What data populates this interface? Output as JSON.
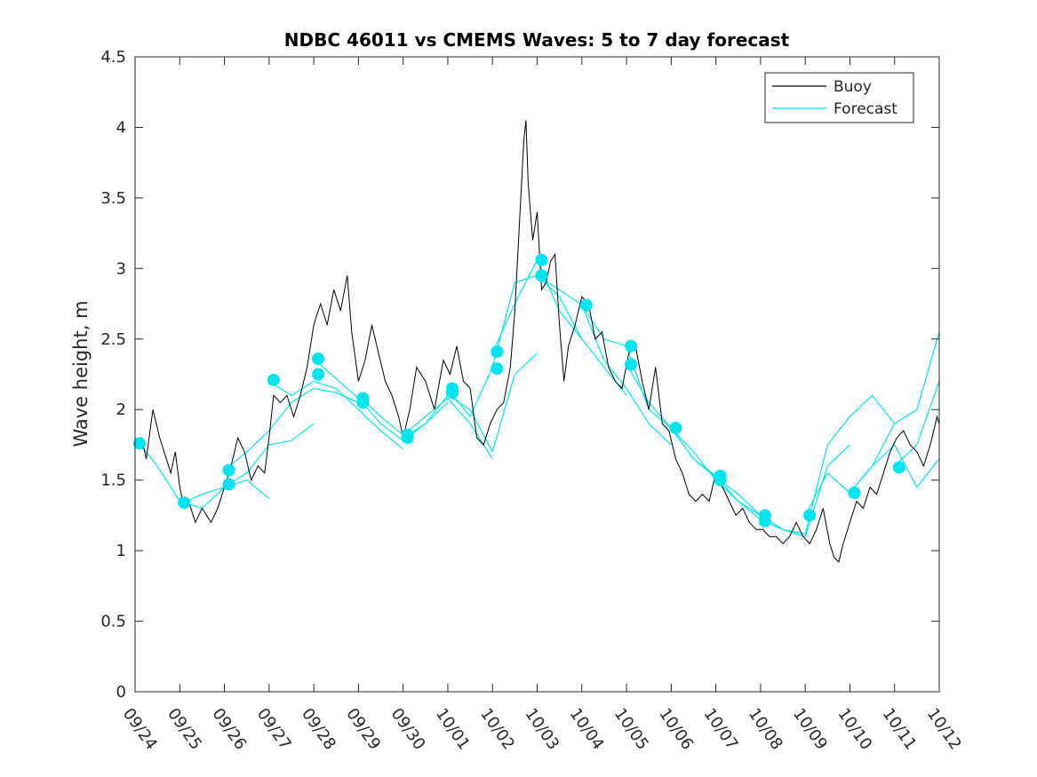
{
  "chart_data": {
    "type": "line",
    "title": "NDBC 46011 vs CMEMS Waves: 5 to 7 day forecast",
    "ylabel": "Wave height, m",
    "xlabel": "",
    "xlim": [
      0,
      18
    ],
    "ylim": [
      0,
      4.5
    ],
    "x_ticks": [
      0,
      1,
      2,
      3,
      4,
      5,
      6,
      7,
      8,
      9,
      10,
      11,
      12,
      13,
      14,
      15,
      16,
      17,
      18
    ],
    "x_tick_labels": [
      "09/24",
      "09/25",
      "09/26",
      "09/27",
      "09/28",
      "09/29",
      "09/30",
      "10/01",
      "10/02",
      "10/03",
      "10/04",
      "10/05",
      "10/06",
      "10/07",
      "10/08",
      "10/09",
      "10/10",
      "10/11",
      "10/12"
    ],
    "y_ticks": [
      0,
      0.5,
      1,
      1.5,
      2,
      2.5,
      3,
      3.5,
      4,
      4.5
    ],
    "y_tick_labels": [
      "0",
      "0.5",
      "1",
      "1.5",
      "2",
      "2.5",
      "3",
      "3.5",
      "4",
      "4.5"
    ],
    "grid": false,
    "legend": {
      "location": "top-right",
      "entries": [
        {
          "label": "Buoy",
          "color": "#000000"
        },
        {
          "label": "Forecast",
          "color": "#00e5ee"
        }
      ]
    },
    "colors": {
      "buoy": "#000000",
      "forecast": "#00e5ee"
    },
    "buoy": {
      "name": "Buoy",
      "x": [
        0,
        0.15,
        0.25,
        0.4,
        0.55,
        0.7,
        0.8,
        0.9,
        1.0,
        1.1,
        1.2,
        1.35,
        1.5,
        1.7,
        1.85,
        2.0,
        2.15,
        2.3,
        2.45,
        2.6,
        2.75,
        2.9,
        3.0,
        3.1,
        3.25,
        3.4,
        3.55,
        3.7,
        3.85,
        4.0,
        4.15,
        4.3,
        4.45,
        4.6,
        4.75,
        4.85,
        5.0,
        5.15,
        5.3,
        5.45,
        5.6,
        5.75,
        5.9,
        6.0,
        6.15,
        6.3,
        6.5,
        6.7,
        6.9,
        7.05,
        7.2,
        7.35,
        7.5,
        7.65,
        7.8,
        7.95,
        8.1,
        8.25,
        8.4,
        8.5,
        8.6,
        8.7,
        8.75,
        8.8,
        8.9,
        9.0,
        9.1,
        9.2,
        9.3,
        9.4,
        9.5,
        9.6,
        9.7,
        9.85,
        10.0,
        10.15,
        10.3,
        10.45,
        10.6,
        10.75,
        10.9,
        11.05,
        11.2,
        11.35,
        11.5,
        11.65,
        11.8,
        11.95,
        12.1,
        12.25,
        12.4,
        12.55,
        12.7,
        12.85,
        13.0,
        13.15,
        13.3,
        13.45,
        13.6,
        13.75,
        13.9,
        14.05,
        14.2,
        14.35,
        14.5,
        14.65,
        14.8,
        14.95,
        15.1,
        15.25,
        15.4,
        15.55,
        15.65,
        15.75,
        15.85,
        16.0,
        16.15,
        16.3,
        16.45,
        16.6,
        16.75,
        16.9,
        17.05,
        17.2,
        17.35,
        17.5,
        17.65,
        17.8,
        17.95,
        18.0
      ],
      "values": [
        1.75,
        1.8,
        1.65,
        2.0,
        1.8,
        1.65,
        1.55,
        1.7,
        1.45,
        1.3,
        1.35,
        1.2,
        1.3,
        1.2,
        1.3,
        1.45,
        1.6,
        1.8,
        1.7,
        1.5,
        1.6,
        1.55,
        1.8,
        2.1,
        2.05,
        2.1,
        1.95,
        2.1,
        2.3,
        2.6,
        2.75,
        2.6,
        2.85,
        2.7,
        2.95,
        2.55,
        2.2,
        2.35,
        2.6,
        2.4,
        2.2,
        2.1,
        1.95,
        1.8,
        2.0,
        2.3,
        2.2,
        2.0,
        2.35,
        2.25,
        2.45,
        2.2,
        2.15,
        1.8,
        1.75,
        1.9,
        2.0,
        2.05,
        2.3,
        2.7,
        3.3,
        3.9,
        4.05,
        3.6,
        3.2,
        3.4,
        2.85,
        2.9,
        3.05,
        3.1,
        2.6,
        2.2,
        2.45,
        2.6,
        2.8,
        2.75,
        2.5,
        2.55,
        2.3,
        2.2,
        2.15,
        2.4,
        2.45,
        2.2,
        2.0,
        2.3,
        1.9,
        1.85,
        1.65,
        1.55,
        1.4,
        1.35,
        1.4,
        1.35,
        1.55,
        1.45,
        1.35,
        1.25,
        1.3,
        1.2,
        1.15,
        1.15,
        1.1,
        1.1,
        1.05,
        1.1,
        1.2,
        1.1,
        1.05,
        1.15,
        1.3,
        1.05,
        0.95,
        0.92,
        1.05,
        1.2,
        1.35,
        1.3,
        1.45,
        1.4,
        1.55,
        1.7,
        1.8,
        1.85,
        1.75,
        1.7,
        1.6,
        1.75,
        1.95,
        1.9
      ]
    },
    "forecast_series": [
      {
        "name": "Forecast",
        "x": [
          0,
          0.5,
          1.0,
          1.5,
          2.0,
          2.5,
          3.0
        ],
        "values": [
          1.8,
          1.6,
          1.35,
          1.3,
          1.45,
          1.5,
          1.37
        ]
      },
      {
        "name": "Forecast",
        "x": [
          1.0,
          1.5,
          2.0,
          2.5,
          3.0,
          3.5,
          4.0
        ],
        "values": [
          1.33,
          1.4,
          1.45,
          1.55,
          1.75,
          1.78,
          1.9
        ]
      },
      {
        "name": "Forecast",
        "x": [
          2.0,
          2.5,
          3.0,
          3.5,
          4.0,
          4.5,
          5.0
        ],
        "values": [
          1.57,
          1.7,
          1.85,
          2.05,
          2.15,
          2.12,
          2.05
        ]
      },
      {
        "name": "Forecast",
        "x": [
          3.0,
          3.5,
          4.0,
          4.5,
          5.0,
          5.5,
          6.0
        ],
        "values": [
          2.2,
          2.1,
          2.2,
          2.15,
          2.0,
          1.85,
          1.72
        ]
      },
      {
        "name": "Forecast",
        "x": [
          4.0,
          4.5,
          5.0,
          5.5,
          6.0,
          6.5,
          7.0
        ],
        "values": [
          2.36,
          2.22,
          2.08,
          1.9,
          1.78,
          1.9,
          2.05
        ]
      },
      {
        "name": "Forecast",
        "x": [
          5.0,
          5.5,
          6.0,
          6.5,
          7.0,
          7.5,
          8.0
        ],
        "values": [
          2.1,
          1.95,
          1.82,
          1.95,
          2.08,
          1.9,
          1.65
        ]
      },
      {
        "name": "Forecast",
        "x": [
          6.0,
          6.5,
          7.0,
          7.5,
          8.0,
          8.5,
          9.0
        ],
        "values": [
          1.8,
          1.9,
          2.1,
          2.0,
          1.7,
          2.25,
          2.4
        ]
      },
      {
        "name": "Forecast",
        "x": [
          7.0,
          7.5,
          8.0,
          8.5,
          9.0,
          9.5,
          10.0
        ],
        "values": [
          2.15,
          1.95,
          2.3,
          2.9,
          2.95,
          2.8,
          2.5
        ]
      },
      {
        "name": "Forecast",
        "x": [
          8.0,
          8.5,
          9.0,
          9.5,
          10.0,
          10.5,
          11.0
        ],
        "values": [
          2.4,
          2.75,
          3.06,
          2.7,
          2.5,
          2.3,
          2.1
        ]
      },
      {
        "name": "Forecast",
        "x": [
          9.0,
          9.5,
          10.0,
          10.5,
          11.0,
          11.5,
          12.0
        ],
        "values": [
          2.95,
          2.85,
          2.74,
          2.35,
          2.15,
          1.9,
          1.75
        ]
      },
      {
        "name": "Forecast",
        "x": [
          10.0,
          10.5,
          11.0,
          11.5,
          12.0,
          12.5,
          13.0
        ],
        "values": [
          2.74,
          2.5,
          2.45,
          2.0,
          1.87,
          1.7,
          1.5
        ]
      },
      {
        "name": "Forecast",
        "x": [
          11.0,
          11.5,
          12.0,
          12.5,
          13.0,
          13.5,
          14.0
        ],
        "values": [
          2.32,
          2.05,
          1.87,
          1.65,
          1.52,
          1.4,
          1.25
        ]
      },
      {
        "name": "Forecast",
        "x": [
          12.0,
          12.5,
          13.0,
          13.5,
          14.0,
          14.5,
          15.0
        ],
        "values": [
          1.87,
          1.65,
          1.53,
          1.35,
          1.22,
          1.15,
          1.1
        ]
      },
      {
        "name": "Forecast",
        "x": [
          13.0,
          13.5,
          14.0,
          14.5,
          15.0,
          15.5,
          16.0
        ],
        "values": [
          1.5,
          1.35,
          1.25,
          1.15,
          1.1,
          1.6,
          1.75
        ]
      },
      {
        "name": "Forecast",
        "x": [
          14.0,
          14.5,
          15.0,
          15.5,
          16.0,
          16.5,
          17.0
        ],
        "values": [
          1.25,
          1.15,
          1.12,
          1.75,
          1.95,
          2.1,
          1.9
        ]
      },
      {
        "name": "Forecast",
        "x": [
          15.0,
          15.5,
          16.0,
          16.5,
          17.0,
          17.5,
          18.0
        ],
        "values": [
          1.25,
          1.55,
          1.41,
          1.6,
          1.75,
          1.45,
          1.65
        ]
      },
      {
        "name": "Forecast",
        "x": [
          16.0,
          16.5,
          17.0,
          17.5,
          18.0
        ],
        "values": [
          1.41,
          1.6,
          1.9,
          2.0,
          2.55
        ]
      },
      {
        "name": "Forecast",
        "x": [
          17.0,
          17.5,
          18.0
        ],
        "values": [
          1.6,
          1.75,
          2.2
        ]
      }
    ],
    "forecast_markers": {
      "x": [
        0.1,
        1.1,
        2.1,
        2.1,
        3.1,
        4.1,
        4.1,
        5.1,
        5.1,
        6.1,
        6.1,
        7.1,
        7.1,
        8.1,
        8.1,
        9.1,
        9.1,
        10.1,
        11.1,
        11.1,
        12.1,
        13.1,
        13.1,
        14.1,
        14.1,
        15.1,
        16.1,
        17.1
      ],
      "values": [
        1.76,
        1.34,
        1.57,
        1.47,
        2.21,
        2.36,
        2.25,
        2.08,
        2.05,
        1.82,
        1.8,
        2.15,
        2.12,
        2.41,
        2.29,
        3.06,
        2.95,
        2.74,
        2.45,
        2.32,
        1.87,
        1.53,
        1.5,
        1.25,
        1.21,
        1.25,
        1.41,
        1.59
      ]
    }
  }
}
